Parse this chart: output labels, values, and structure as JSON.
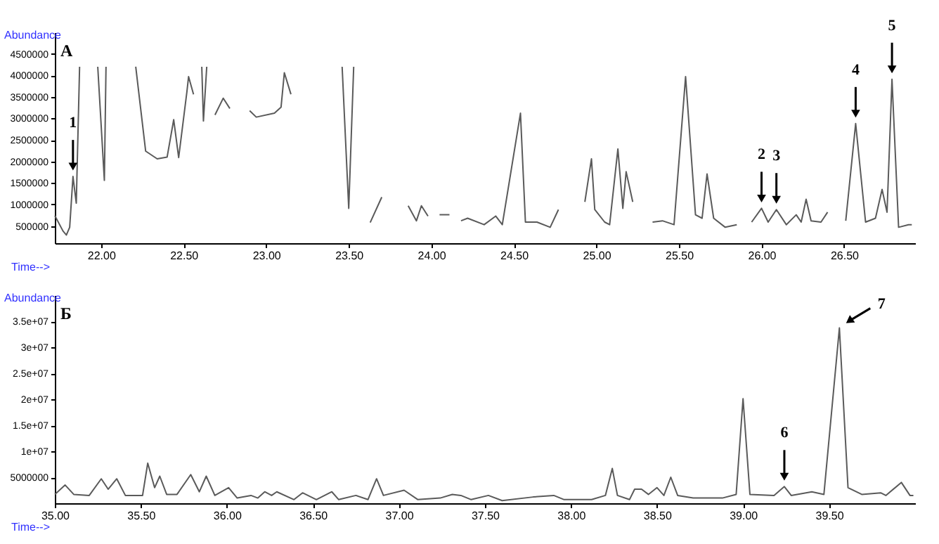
{
  "chart_data": [
    {
      "type": "line",
      "title": "А",
      "xlabel": "Time-->",
      "ylabel": "Abundance",
      "grid": false,
      "marker": "none",
      "line_style": "solid",
      "x": [
        21.72,
        21.77,
        21.79,
        21.81,
        21.83,
        21.85,
        21.87,
        21.89,
        21.98,
        22.02,
        22.03,
        22.2,
        22.21,
        22.27,
        22.34,
        22.4,
        22.44,
        22.47,
        22.52,
        22.53,
        22.56,
        22.57,
        22.61,
        22.62,
        22.64,
        22.67,
        22.69,
        22.74,
        22.78,
        22.79,
        22.88,
        22.9,
        22.94,
        23.05,
        23.09,
        23.11,
        23.15,
        23.18,
        23.46,
        23.5,
        23.53,
        23.6,
        23.63,
        23.7,
        23.75,
        23.85,
        23.86,
        23.91,
        23.94,
        23.98,
        24.01,
        24.03,
        24.05,
        24.11,
        24.13,
        24.16,
        24.18,
        24.22,
        24.32,
        24.39,
        24.43,
        24.54,
        24.57,
        24.64,
        24.72,
        24.77,
        24.79,
        24.91,
        24.93,
        24.97,
        24.99,
        25.05,
        25.08,
        25.13,
        25.16,
        25.18,
        25.22,
        25.25,
        25.3,
        25.34,
        25.4,
        25.47,
        25.54,
        25.6,
        25.64,
        25.67,
        25.71,
        25.78,
        25.85,
        25.89,
        25.93,
        25.94,
        26.0,
        26.04,
        26.09,
        26.15,
        26.21,
        26.24,
        26.27,
        26.3,
        26.36,
        26.4,
        26.41,
        26.47,
        26.51,
        26.57,
        26.63,
        26.69,
        26.73,
        26.76,
        26.79,
        26.83,
        26.89,
        26.91
      ],
      "series": [
        {
          "color": "#5a5a5a",
          "values": [
            740000,
            380000,
            290000,
            470000,
            1650000,
            1030000,
            4200000,
            null,
            4200000,
            1560000,
            4200000,
            null,
            4200000,
            2240000,
            2060000,
            2100000,
            2970000,
            2090000,
            3620000,
            3970000,
            3560000,
            null,
            4200000,
            2940000,
            4200000,
            null,
            3080000,
            3470000,
            3230000,
            null,
            null,
            3180000,
            3030000,
            3120000,
            3260000,
            4060000,
            3560000,
            null,
            4200000,
            910000,
            4200000,
            null,
            580000,
            1170000,
            null,
            null,
            970000,
            620000,
            970000,
            730000,
            null,
            null,
            760000,
            760000,
            null,
            null,
            620000,
            680000,
            530000,
            730000,
            530000,
            3120000,
            590000,
            590000,
            470000,
            880000,
            null,
            null,
            1060000,
            2060000,
            880000,
            590000,
            530000,
            2290000,
            910000,
            1760000,
            1060000,
            null,
            null,
            590000,
            620000,
            530000,
            3970000,
            760000,
            680000,
            1710000,
            680000,
            470000,
            530000,
            null,
            null,
            590000,
            910000,
            590000,
            880000,
            530000,
            760000,
            590000,
            1120000,
            620000,
            590000,
            820000,
            null,
            null,
            620000,
            2880000,
            590000,
            680000,
            1350000,
            820000,
            3910000,
            470000,
            530000,
            530000
          ]
        }
      ],
      "xlim": [
        21.72,
        26.93
      ],
      "xticks": [
        {
          "value": 22,
          "label": "22.00"
        },
        {
          "value": 22.5,
          "label": "22.50"
        },
        {
          "value": 23,
          "label": "23.00"
        },
        {
          "value": 23.5,
          "label": "23.50"
        },
        {
          "value": 24,
          "label": "24.00"
        },
        {
          "value": 24.5,
          "label": "24.50"
        },
        {
          "value": 25,
          "label": "25.00"
        },
        {
          "value": 25.5,
          "label": "25.50"
        },
        {
          "value": 26,
          "label": "26.00"
        },
        {
          "value": 26.5,
          "label": "26.50"
        }
      ],
      "ylim": [
        100000,
        5000000
      ],
      "yticks": [
        500000,
        1000000,
        1500000,
        2000000,
        2500000,
        3000000,
        3500000,
        4000000,
        4500000
      ],
      "annotations": [
        {
          "text": "1",
          "x": 21.83,
          "y": 1650000
        },
        {
          "text": "2",
          "x": 26.0,
          "y": 910000
        },
        {
          "text": "3",
          "x": 26.09,
          "y": 880000
        },
        {
          "text": "4",
          "x": 26.57,
          "y": 2880000
        },
        {
          "text": "5",
          "x": 26.79,
          "y": 3910000
        }
      ]
    },
    {
      "type": "line",
      "title": "Б",
      "xlabel": "Time-->",
      "ylabel": "Abundance",
      "grid": false,
      "marker": "none",
      "line_style": "solid",
      "x": [
        35.0,
        35.06,
        35.11,
        35.2,
        35.27,
        35.31,
        35.36,
        35.41,
        35.51,
        35.54,
        35.58,
        35.61,
        35.65,
        35.71,
        35.79,
        35.84,
        35.88,
        35.93,
        36.01,
        36.06,
        36.14,
        36.18,
        36.22,
        36.26,
        36.29,
        36.39,
        36.44,
        36.52,
        36.61,
        36.65,
        36.75,
        36.82,
        36.87,
        36.91,
        37.03,
        37.11,
        37.24,
        37.31,
        37.36,
        37.42,
        37.52,
        37.6,
        37.78,
        37.9,
        37.96,
        38.12,
        38.2,
        38.24,
        38.27,
        38.34,
        38.37,
        38.41,
        38.45,
        38.5,
        38.54,
        38.58,
        38.62,
        38.71,
        38.8,
        38.88,
        38.96,
        39.0,
        39.04,
        39.18,
        39.24,
        39.28,
        39.4,
        39.47,
        39.56,
        39.61,
        39.69,
        39.8,
        39.83,
        39.92,
        39.97,
        39.99
      ],
      "series": [
        {
          "color": "#5a5a5a",
          "values": [
            1700000,
            3500000,
            1700000,
            1500000,
            4700000,
            2700000,
            4700000,
            1500000,
            1500000,
            7700000,
            3000000,
            5200000,
            1700000,
            1700000,
            5500000,
            2200000,
            5200000,
            1500000,
            3000000,
            1000000,
            1500000,
            1000000,
            2200000,
            1500000,
            2200000,
            700000,
            2000000,
            700000,
            2200000,
            700000,
            1500000,
            700000,
            4700000,
            1500000,
            2500000,
            700000,
            1000000,
            1700000,
            1500000,
            700000,
            1500000,
            500000,
            1200000,
            1500000,
            700000,
            700000,
            1500000,
            6700000,
            1500000,
            700000,
            2700000,
            2700000,
            1700000,
            3000000,
            1500000,
            5000000,
            1500000,
            1000000,
            1000000,
            1000000,
            1700000,
            20100000,
            1700000,
            1500000,
            3200000,
            1500000,
            2200000,
            1700000,
            33700000,
            3000000,
            1700000,
            2000000,
            1500000,
            4000000,
            1500000,
            1500000
          ]
        }
      ],
      "xlim": [
        35.0,
        40.0
      ],
      "xticks": [
        {
          "value": 35,
          "label": "35.00"
        },
        {
          "value": 35.5,
          "label": "35.50"
        },
        {
          "value": 36,
          "label": "36.00"
        },
        {
          "value": 36.5,
          "label": "36.50"
        },
        {
          "value": 37,
          "label": "37.00"
        },
        {
          "value": 37.5,
          "label": "37.50"
        },
        {
          "value": 38,
          "label": "38.00"
        },
        {
          "value": 38.5,
          "label": "38.50"
        },
        {
          "value": 39,
          "label": "39.00"
        },
        {
          "value": 39.5,
          "label": "39.50"
        }
      ],
      "ylim": [
        0,
        40000000
      ],
      "yticks": [
        5000000,
        {
          "value": 10000000,
          "label": "1e+07"
        },
        {
          "value": 15000000,
          "label": "1.5e+07"
        },
        {
          "value": 20000000,
          "label": "2e+07"
        },
        {
          "value": 25000000,
          "label": "2.5e+07"
        },
        {
          "value": 30000000,
          "label": "3e+07"
        },
        {
          "value": 35000000,
          "label": "3.5e+07"
        }
      ],
      "annotations": [
        {
          "text": "6",
          "x": 39.24,
          "y": 3200000
        },
        {
          "text": "7",
          "x": 39.56,
          "y": 33700000
        }
      ]
    }
  ]
}
